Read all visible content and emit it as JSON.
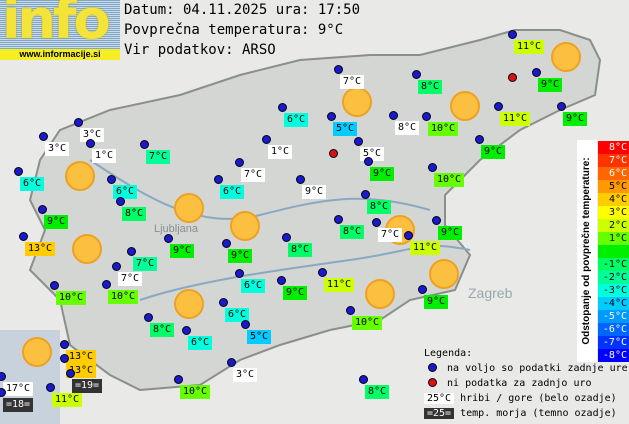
{
  "logo": {
    "text": "info",
    "url": "www.informacije.si"
  },
  "header": {
    "date_line": "Datum: 04.11.2025 ura: 17:50",
    "avg_line": "Povprečna temperatura: 9°C",
    "source_line": "Vir podatkov: ARSO"
  },
  "map_labels": {
    "zagreb": "Zagreb",
    "ljubljana": "Ljubljana"
  },
  "stations": [
    {
      "t": "11°C",
      "k": "2"
    },
    {
      "t": "7°C",
      "k": "w"
    },
    {
      "t": "8°C",
      "k": "-1"
    },
    {
      "t": "9°C",
      "k": "0"
    },
    {
      "t": "6°C",
      "k": "-3"
    },
    {
      "t": "5°C",
      "k": "-4"
    },
    {
      "t": "8°C",
      "k": "w"
    },
    {
      "t": "10°C",
      "k": "1"
    },
    {
      "t": "11°C",
      "k": "2"
    },
    {
      "t": "9°C",
      "k": "0"
    },
    {
      "t": "3°C",
      "k": "w"
    },
    {
      "t": "3°C",
      "k": "w"
    },
    {
      "t": "1°C",
      "k": "w"
    },
    {
      "t": "7°C",
      "k": "-2"
    },
    {
      "t": "1°C",
      "k": "w"
    },
    {
      "t": "5°C",
      "k": "w"
    },
    {
      "t": "9°C",
      "k": "0"
    },
    {
      "t": "6°C",
      "k": "-3"
    },
    {
      "t": "9°C",
      "k": "0"
    },
    {
      "t": "10°C",
      "k": "1"
    },
    {
      "t": "7°C",
      "k": "w"
    },
    {
      "t": "6°C",
      "k": "-3"
    },
    {
      "t": "6°C",
      "k": "-3"
    },
    {
      "t": "9°C",
      "k": "w"
    },
    {
      "t": "8°C",
      "k": "-1"
    },
    {
      "t": "8°C",
      "k": "-1"
    },
    {
      "t": "9°C",
      "k": "0"
    },
    {
      "t": "8°C",
      "k": "-1"
    },
    {
      "t": "7°C",
      "k": "w"
    },
    {
      "t": "9°C",
      "k": "0"
    },
    {
      "t": "9°C",
      "k": "0"
    },
    {
      "t": "9°C",
      "k": "0"
    },
    {
      "t": "8°C",
      "k": "-1"
    },
    {
      "t": "11°C",
      "k": "2"
    },
    {
      "t": "13°C",
      "k": "4"
    },
    {
      "t": "7°C",
      "k": "-2"
    },
    {
      "t": "7°C",
      "k": "w"
    },
    {
      "t": "11°C",
      "k": "2"
    },
    {
      "t": "6°C",
      "k": "-3"
    },
    {
      "t": "9°C",
      "k": "0"
    },
    {
      "t": "10°C",
      "k": "1"
    },
    {
      "t": "10°C",
      "k": "1"
    },
    {
      "t": "9°C",
      "k": "0"
    },
    {
      "t": "6°C",
      "k": "-3"
    },
    {
      "t": "10°C",
      "k": "1"
    },
    {
      "t": "8°C",
      "k": "-1"
    },
    {
      "t": "6°C",
      "k": "-3"
    },
    {
      "t": "5°C",
      "k": "-4"
    },
    {
      "t": "13°C",
      "k": "4"
    },
    {
      "t": "13°C",
      "k": "4"
    },
    {
      "t": "=19=",
      "k": "sea"
    },
    {
      "t": "17°C",
      "k": "w"
    },
    {
      "t": "=18=",
      "k": "sea"
    },
    {
      "t": "11°C",
      "k": "2"
    },
    {
      "t": "3°C",
      "k": "w"
    },
    {
      "t": "10°C",
      "k": "1"
    },
    {
      "t": "8°C",
      "k": "-1"
    }
  ],
  "scale": {
    "title": "Odstopanje od povprečne temperature:",
    "steps": [
      {
        "v": "8°C",
        "c": "#ff0000"
      },
      {
        "v": "7°C",
        "c": "#ff3300"
      },
      {
        "v": "6°C",
        "c": "#ff6600"
      },
      {
        "v": "5°C",
        "c": "#ff9900"
      },
      {
        "v": "4°C",
        "c": "#ffcc00"
      },
      {
        "v": "3°C",
        "c": "#ffff00"
      },
      {
        "v": "2°C",
        "c": "#ccff00"
      },
      {
        "v": "1°C",
        "c": "#66ff00"
      },
      {
        "v": "",
        "c": "#00ee00"
      },
      {
        "v": "-1°C",
        "c": "#00ff66"
      },
      {
        "v": "-2°C",
        "c": "#00ff99"
      },
      {
        "v": "-3°C",
        "c": "#00ffdd"
      },
      {
        "v": "-4°C",
        "c": "#00ccff"
      },
      {
        "v": "-5°C",
        "c": "#0099ff"
      },
      {
        "v": "-6°C",
        "c": "#0066ff"
      },
      {
        "v": "-7°C",
        "c": "#0033ff"
      },
      {
        "v": "-8°C",
        "c": "#0000ff"
      }
    ]
  },
  "legend": {
    "title": "Legenda:",
    "blue": "na voljo so podatki zadnje ure",
    "red": "ni podatka za zadnjo uro",
    "mountain_sample": "25°C",
    "mountain": "hribi / gore (belo ozadje)",
    "sea_sample": "=25=",
    "sea": "temp. morja (temno ozadje)"
  }
}
